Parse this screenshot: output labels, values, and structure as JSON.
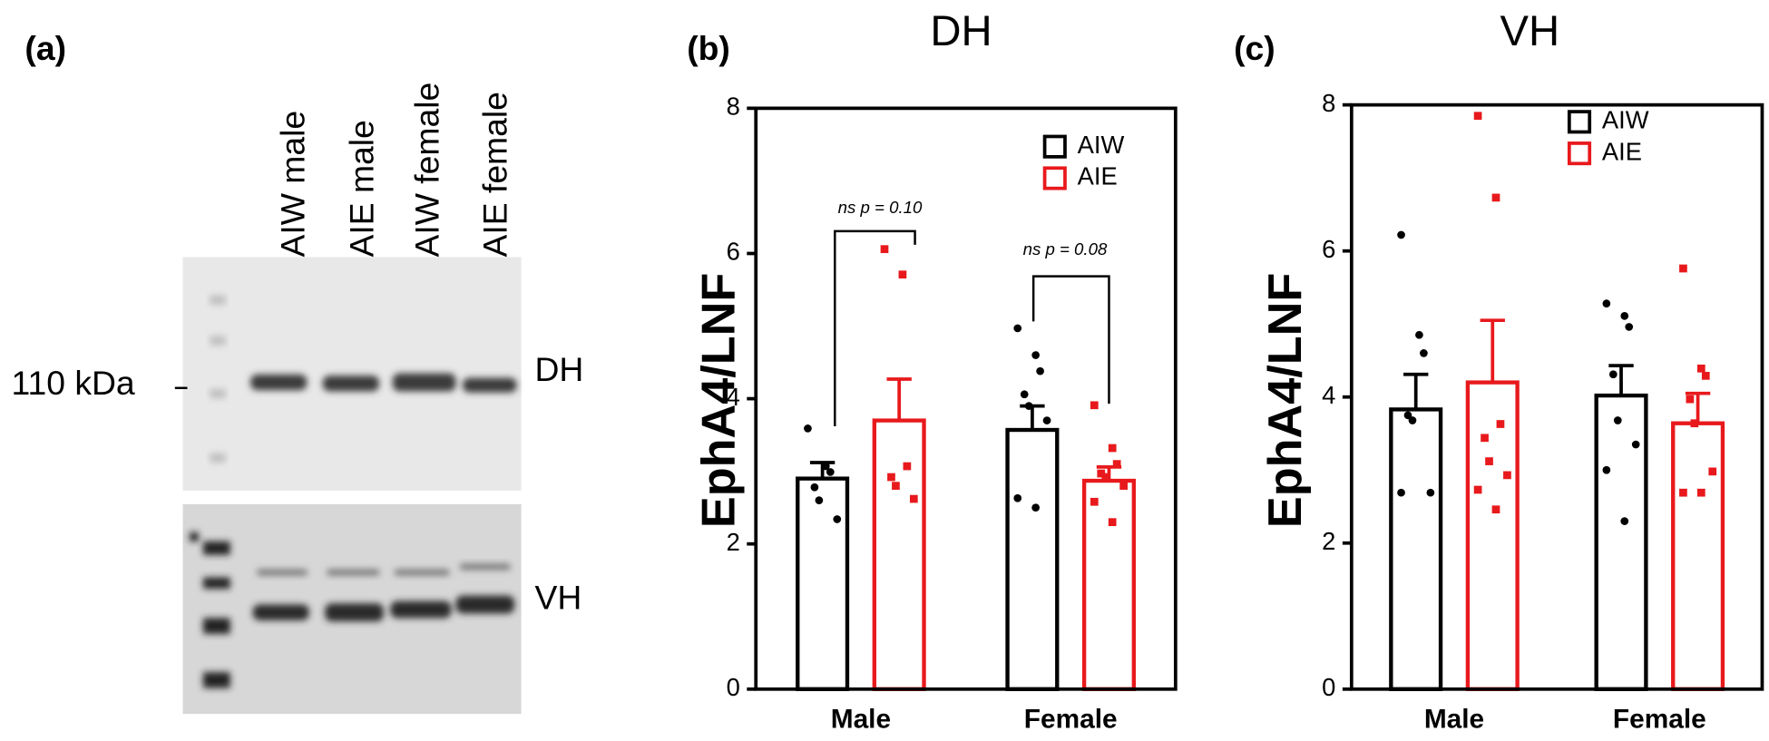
{
  "blot": {
    "panel_label": "(a)",
    "lanes": [
      "AIW male",
      "AIE male",
      "AIW female",
      "AIE female"
    ],
    "marker": "110 kDa",
    "rows": [
      "DH",
      "VH"
    ]
  },
  "chart_data": [
    {
      "type": "bar",
      "panel_label": "(b)",
      "title": "DH",
      "y_label": "EphA4/LNF",
      "categories": [
        "Male",
        "Female"
      ],
      "ylim": [
        0,
        8
      ],
      "yticks": [
        0,
        2,
        4,
        6,
        8
      ],
      "series": [
        {
          "name": "AIW",
          "color": "#000000",
          "marker": "circle",
          "values": [
            2.9,
            3.57
          ],
          "errors": [
            0.22,
            0.33
          ],
          "points": [
            [
              3.59,
              3.07,
              2.99,
              2.78,
              2.6,
              2.34
            ],
            [
              4.97,
              4.6,
              4.38,
              4.06,
              3.9,
              3.7,
              2.63,
              2.5
            ]
          ]
        },
        {
          "name": "AIE",
          "color": "#e8191c",
          "marker": "square",
          "values": [
            3.7,
            2.87
          ],
          "errors": [
            0.57,
            0.19
          ],
          "points": [
            [
              6.06,
              5.71,
              3.07,
              2.92,
              2.8,
              2.62
            ],
            [
              3.91,
              3.32,
              3.1,
              2.97,
              2.92,
              2.8,
              2.58,
              2.3
            ]
          ]
        }
      ],
      "annotations": [
        "ns p = 0.10",
        "ns p = 0.08"
      ]
    },
    {
      "type": "bar",
      "panel_label": "(c)",
      "title": "VH",
      "y_label": "EphA4/LNF",
      "categories": [
        "Male",
        "Female"
      ],
      "ylim": [
        0,
        8
      ],
      "yticks": [
        0,
        2,
        4,
        6,
        8
      ],
      "series": [
        {
          "name": "AIW",
          "color": "#000000",
          "marker": "circle",
          "values": [
            3.83,
            4.02
          ],
          "errors": [
            0.48,
            0.41
          ],
          "points": [
            [
              6.22,
              4.85,
              4.6,
              3.75,
              3.68,
              2.69,
              2.69
            ],
            [
              5.28,
              5.11,
              4.96,
              4.31,
              3.68,
              3.35,
              3.0,
              2.3
            ]
          ]
        },
        {
          "name": "AIE",
          "color": "#e8191c",
          "marker": "square",
          "values": [
            4.2,
            3.64
          ],
          "errors": [
            0.85,
            0.41
          ],
          "points": [
            [
              7.85,
              6.73,
              3.63,
              3.44,
              3.12,
              2.93,
              2.73,
              2.46
            ],
            [
              5.76,
              4.39,
              4.29,
              3.97,
              3.64,
              2.98,
              2.69,
              2.69
            ]
          ]
        }
      ]
    }
  ]
}
